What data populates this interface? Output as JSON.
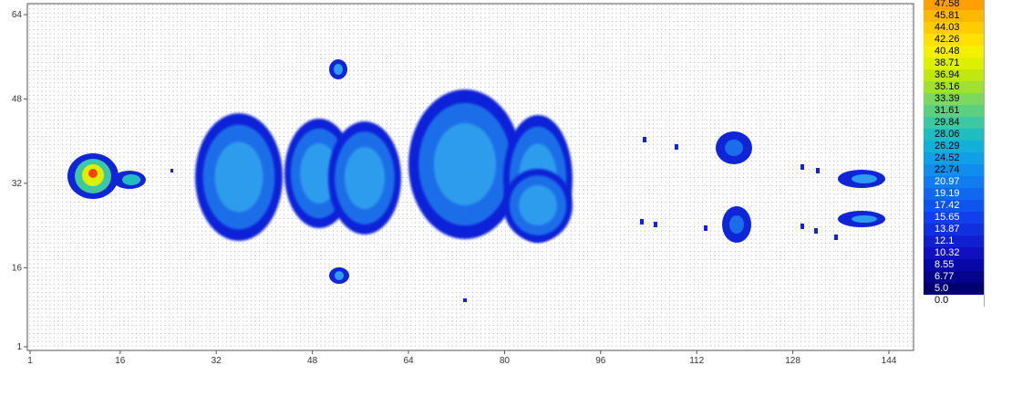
{
  "chart_data": {
    "type": "heatmap",
    "title": "",
    "xlabel": "",
    "ylabel": "",
    "x_ticks": [
      "1",
      "16",
      "32",
      "48",
      "64",
      "80",
      "96",
      "112",
      "128",
      "144"
    ],
    "y_ticks": [
      "64",
      "48",
      "32",
      "16",
      "1"
    ],
    "x_range": [
      1,
      150
    ],
    "y_range": [
      1,
      64
    ],
    "legend_position": "right",
    "legend": [
      {
        "label": "47.58",
        "color": "#ffa000"
      },
      {
        "label": "45.81",
        "color": "#ffb800"
      },
      {
        "label": "44.03",
        "color": "#ffcc00"
      },
      {
        "label": "42.26",
        "color": "#ffe000"
      },
      {
        "label": "40.48",
        "color": "#f5f000"
      },
      {
        "label": "38.71",
        "color": "#dcf000"
      },
      {
        "label": "36.94",
        "color": "#c0e810"
      },
      {
        "label": "35.16",
        "color": "#a0e030"
      },
      {
        "label": "33.39",
        "color": "#7cd860"
      },
      {
        "label": "31.61",
        "color": "#5cd080"
      },
      {
        "label": "29.84",
        "color": "#3cc8a0"
      },
      {
        "label": "28.06",
        "color": "#20bcc0"
      },
      {
        "label": "26.29",
        "color": "#10b0d8"
      },
      {
        "label": "24.52",
        "color": "#10a0e8"
      },
      {
        "label": "22.74",
        "color": "#108ef0"
      },
      {
        "label": "20.97",
        "color": "#107cf0"
      },
      {
        "label": "19.19",
        "color": "#1068f0"
      },
      {
        "label": "17.42",
        "color": "#1054f0"
      },
      {
        "label": "15.65",
        "color": "#1040ec"
      },
      {
        "label": "13.87",
        "color": "#1030e0"
      },
      {
        "label": "12.1",
        "color": "#1020d0"
      },
      {
        "label": "10.32",
        "color": "#1010c0"
      },
      {
        "label": "8.55",
        "color": "#0808a8"
      },
      {
        "label": "6.77",
        "color": "#04048c"
      },
      {
        "label": "5.0",
        "color": "#000070"
      },
      {
        "label": "0.0",
        "color": "#ffffff"
      }
    ],
    "grid": true,
    "hotspots": [
      {
        "x": 11,
        "y": 33,
        "peak": 47.58
      },
      {
        "x": 16,
        "y": 32,
        "peak": 26.29
      },
      {
        "x": 38,
        "y": 33,
        "peak": 19.19
      },
      {
        "x": 52,
        "y": 34,
        "peak": 17.42
      },
      {
        "x": 72,
        "y": 34,
        "peak": 20.97
      },
      {
        "x": 83,
        "y": 31,
        "peak": 17.42
      },
      {
        "x": 52,
        "y": 55,
        "peak": 13.87
      },
      {
        "x": 52,
        "y": 15,
        "peak": 13.87
      },
      {
        "x": 118,
        "y": 36,
        "peak": 13.87
      },
      {
        "x": 118,
        "y": 25,
        "peak": 13.87
      },
      {
        "x": 138,
        "y": 31,
        "peak": 15.65
      },
      {
        "x": 138,
        "y": 26,
        "peak": 15.65
      }
    ]
  }
}
